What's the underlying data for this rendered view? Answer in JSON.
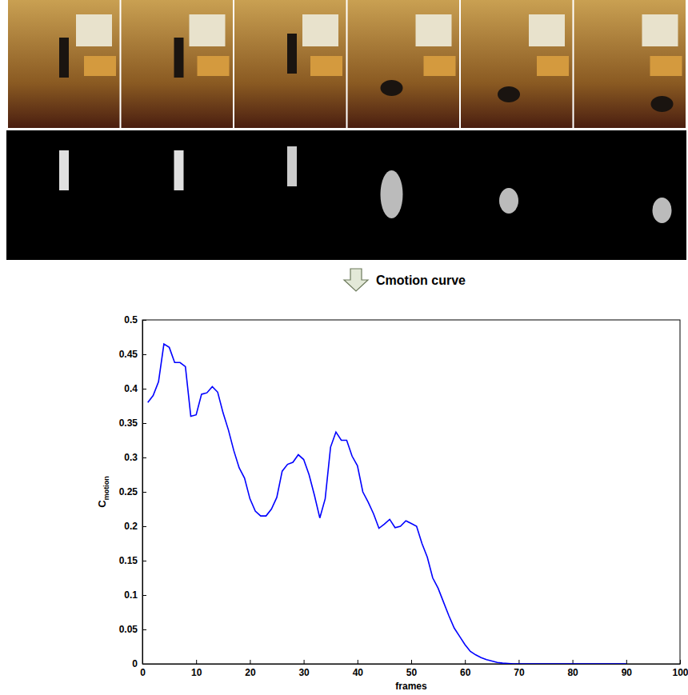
{
  "chart_data": {
    "type": "line",
    "annotation": "Cmotion curve",
    "xlabel": "frames",
    "ylabel": {
      "main": "C",
      "sub": "motion"
    },
    "x": [
      1,
      2,
      3,
      4,
      5,
      6,
      7,
      8,
      9,
      10,
      11,
      12,
      13,
      14,
      15,
      16,
      17,
      18,
      19,
      20,
      21,
      22,
      23,
      24,
      25,
      26,
      27,
      28,
      29,
      30,
      31,
      32,
      33,
      34,
      35,
      36,
      37,
      38,
      39,
      40,
      41,
      42,
      43,
      44,
      45,
      46,
      47,
      48,
      49,
      50,
      51,
      52,
      53,
      54,
      55,
      56,
      57,
      58,
      59,
      60,
      61,
      62,
      63,
      64,
      65,
      66,
      67,
      68,
      69,
      70,
      71,
      72,
      73,
      74,
      75,
      76,
      77,
      78,
      79,
      80,
      81,
      82,
      83,
      84,
      85,
      86,
      87,
      88,
      89,
      90
    ],
    "values": [
      0.38,
      0.39,
      0.41,
      0.465,
      0.46,
      0.438,
      0.438,
      0.432,
      0.36,
      0.362,
      0.392,
      0.394,
      0.403,
      0.395,
      0.365,
      0.34,
      0.31,
      0.285,
      0.27,
      0.24,
      0.222,
      0.215,
      0.215,
      0.225,
      0.242,
      0.28,
      0.29,
      0.293,
      0.304,
      0.297,
      0.275,
      0.245,
      0.212,
      0.24,
      0.315,
      0.337,
      0.325,
      0.325,
      0.302,
      0.288,
      0.25,
      0.235,
      0.218,
      0.197,
      0.203,
      0.21,
      0.198,
      0.2,
      0.208,
      0.204,
      0.2,
      0.175,
      0.155,
      0.125,
      0.11,
      0.09,
      0.07,
      0.052,
      0.04,
      0.028,
      0.018,
      0.013,
      0.009,
      0.006,
      0.004,
      0.002,
      0.001,
      0.0005,
      0,
      0,
      0,
      0,
      0,
      0,
      0,
      0,
      0,
      0,
      0,
      0,
      0,
      0,
      0,
      0,
      0,
      0,
      0,
      0,
      0,
      0
    ],
    "color": "#0000ff",
    "xlim": [
      0,
      100
    ],
    "xticks": [
      0,
      10,
      20,
      30,
      40,
      50,
      60,
      70,
      80,
      90,
      100
    ],
    "ylim": [
      0,
      0.5
    ],
    "yticks": [
      0,
      0.05,
      0.1,
      0.15,
      0.2,
      0.25,
      0.3,
      0.35,
      0.4,
      0.45,
      0.5
    ],
    "grid": false
  }
}
